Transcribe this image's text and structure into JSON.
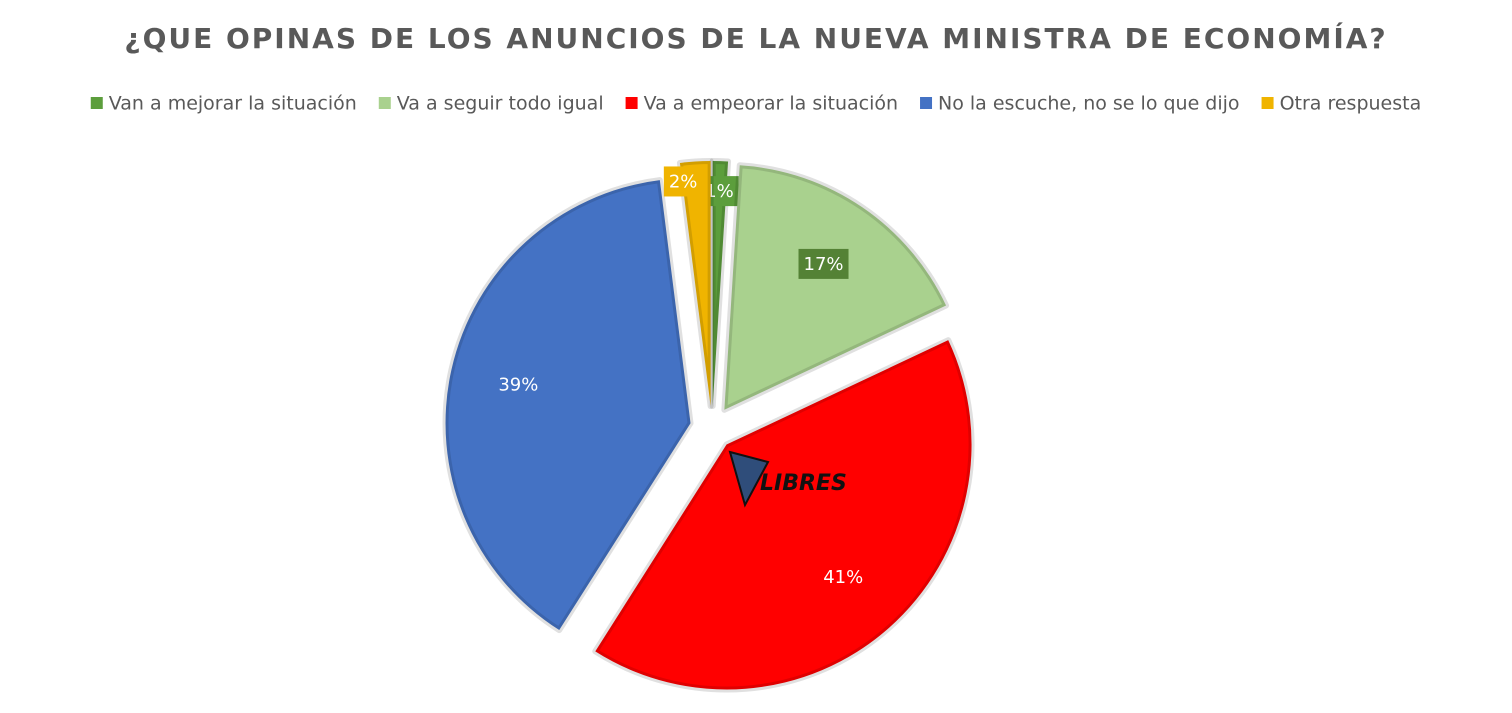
{
  "chart_data": {
    "type": "pie",
    "title": "¿QUE OPINAS DE LOS ANUNCIOS DE LA NUEVA MINISTRA DE ECONOMÍA?",
    "categories": [
      "Van a mejorar la situación",
      "Va a seguir todo igual",
      "Va a empeorar la situación",
      "No la escuche, no se lo que dijo",
      "Otra respuesta"
    ],
    "values": [
      1,
      17,
      41,
      39,
      2
    ],
    "value_labels": [
      "1%",
      "17%",
      "41%",
      "39%",
      "2%"
    ],
    "colors": [
      "#5c9e3c",
      "#a9d18e",
      "#ff0000",
      "#4472c4",
      "#f0b400"
    ],
    "legend": "top",
    "watermark": "LIBRES"
  }
}
